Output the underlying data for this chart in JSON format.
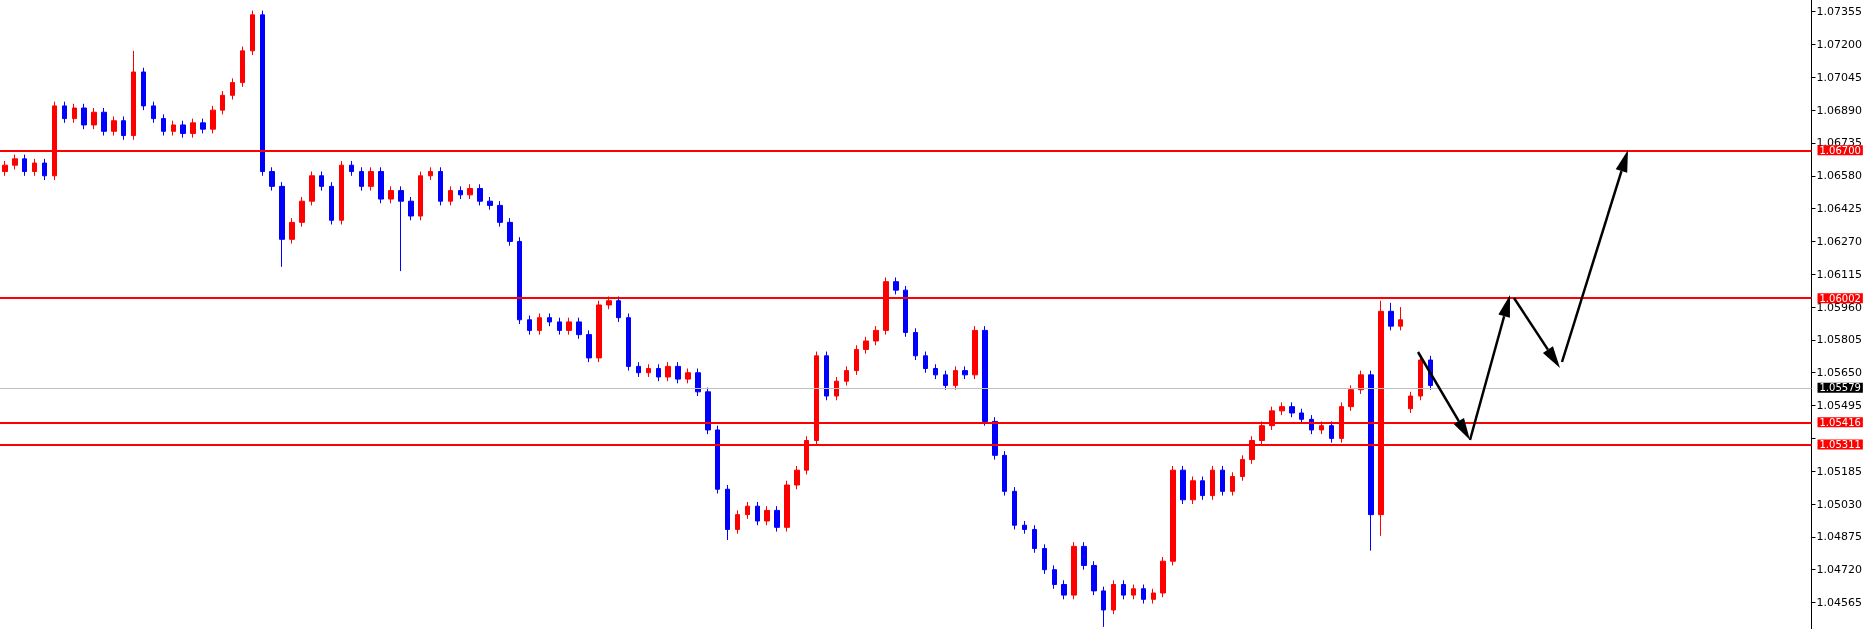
{
  "chart_data": {
    "type": "candlestick",
    "categories": [
      null,
      null,
      null,
      null,
      null,
      null,
      null,
      null,
      null,
      null,
      null,
      null,
      null,
      null,
      null,
      null,
      null,
      null,
      null,
      null,
      null,
      null,
      null,
      null,
      null,
      null,
      null,
      null,
      null,
      null,
      null,
      null,
      null,
      null,
      null,
      null,
      null,
      null,
      null,
      null,
      null,
      null,
      null,
      null,
      null,
      null,
      null,
      null,
      null,
      null,
      null,
      null,
      null,
      null,
      null,
      null,
      null,
      null,
      null,
      null,
      null,
      null,
      null,
      null,
      null,
      null,
      null,
      null,
      null,
      null,
      null,
      null,
      null,
      null,
      null,
      null,
      null,
      null,
      null,
      null,
      null,
      null,
      null,
      null,
      null,
      null,
      null,
      null,
      null,
      null,
      null,
      null,
      null,
      null,
      null,
      null,
      null,
      null,
      null,
      null,
      null,
      null,
      null,
      null,
      null,
      null,
      null,
      null,
      null,
      null,
      null,
      null,
      null,
      null,
      null,
      null,
      null,
      null,
      null,
      null,
      null,
      null,
      null,
      null,
      null,
      null,
      null,
      null,
      null,
      null,
      null,
      null,
      null,
      null,
      null,
      null,
      null,
      null,
      null,
      null,
      null,
      null,
      null,
      null,
      null,
      null,
      null,
      null,
      null,
      null,
      null,
      null,
      null,
      null,
      null,
      null,
      null,
      null,
      null,
      null,
      null,
      null,
      null,
      null,
      null,
      null,
      null,
      null,
      null,
      null,
      null,
      null,
      null,
      null,
      null,
      null,
      null,
      null,
      null,
      null,
      null,
      null,
      null
    ],
    "colors": [
      "#ff0000",
      "#ff0000",
      "#0000ff",
      "#ff0000",
      "#0000ff",
      "#ff0000",
      "#0000ff",
      "#ff0000",
      "#0000ff",
      "#ff0000",
      "#0000ff",
      "#ff0000",
      "#0000ff",
      "#ff0000",
      "#0000ff",
      "#0000ff",
      "#0000ff",
      "#ff0000",
      "#0000ff",
      "#ff0000",
      "#0000ff",
      "#ff0000",
      "#ff0000",
      "#ff0000",
      "#ff0000",
      "#ff0000",
      "#0000ff",
      "#0000ff",
      "#0000ff",
      "#ff0000",
      "#ff0000",
      "#ff0000",
      "#0000ff",
      "#0000ff",
      "#ff0000",
      "#0000ff",
      "#0000ff",
      "#ff0000",
      "#0000ff",
      "#ff0000",
      "#0000ff",
      "#0000ff",
      "#ff0000",
      "#ff0000",
      "#0000ff",
      "#ff0000",
      "#0000ff",
      "#ff0000",
      "#0000ff",
      "#0000ff",
      "#0000ff",
      "#0000ff",
      "#0000ff",
      "#0000ff",
      "#ff0000",
      "#0000ff",
      "#0000ff",
      "#ff0000",
      "#0000ff",
      "#0000ff",
      "#ff0000",
      "#ff0000",
      "#0000ff",
      "#0000ff",
      "#0000ff",
      "#ff0000",
      "#0000ff",
      "#ff0000",
      "#0000ff",
      "#ff0000",
      "#0000ff",
      "#0000ff",
      "#0000ff",
      "#0000ff",
      "#ff0000",
      "#ff0000",
      "#0000ff",
      "#ff0000",
      "#0000ff",
      "#ff0000",
      "#ff0000",
      "#ff0000",
      "#ff0000",
      "#0000ff",
      "#ff0000",
      "#ff0000",
      "#ff0000",
      "#ff0000",
      "#ff0000",
      "#ff0000",
      "#0000ff",
      "#0000ff",
      "#0000ff",
      "#0000ff",
      "#0000ff",
      "#0000ff",
      "#ff0000",
      "#0000ff",
      "#ff0000",
      "#0000ff",
      "#0000ff",
      "#0000ff",
      "#0000ff",
      "#0000ff",
      "#0000ff",
      "#0000ff",
      "#0000ff",
      "#0000ff",
      "#ff0000",
      "#0000ff",
      "#0000ff",
      "#0000ff",
      "#ff0000",
      "#0000ff",
      "#ff0000",
      "#0000ff",
      "#ff0000",
      "#ff0000",
      "#ff0000",
      "#0000ff",
      "#ff0000",
      "#0000ff",
      "#ff0000",
      "#0000ff",
      "#ff0000",
      "#ff0000",
      "#ff0000",
      "#ff0000",
      "#ff0000",
      "#ff0000",
      "#0000ff",
      "#0000ff",
      "#0000ff",
      "#ff0000",
      "#0000ff",
      "#ff0000",
      "#ff0000",
      "#ff0000",
      "#0000ff",
      "#ff0000",
      "#0000ff",
      "#ff0000",
      "#ff0000",
      "#ff0000",
      "#0000ff",
      null,
      null,
      null,
      null,
      null,
      null,
      null,
      null,
      null,
      null,
      null,
      null,
      null,
      null,
      null,
      null,
      null,
      null,
      null,
      null,
      null,
      null,
      null,
      null,
      null,
      null,
      null,
      null,
      null,
      null,
      null,
      null,
      null,
      null,
      null,
      null,
      null,
      null
    ],
    "ohlc": [
      [
        1.066,
        1.0665,
        1.0658,
        1.0663
      ],
      [
        1.0663,
        1.0668,
        1.0661,
        1.0666
      ],
      [
        1.0666,
        1.0668,
        1.0658,
        1.066
      ],
      [
        1.066,
        1.0666,
        1.0658,
        1.0664
      ],
      [
        1.0664,
        1.0666,
        1.0656,
        1.0658
      ],
      [
        1.0658,
        1.0693,
        1.0656,
        1.0691
      ],
      [
        1.0691,
        1.0693,
        1.0683,
        1.0685
      ],
      [
        1.0685,
        1.0692,
        1.0683,
        1.069
      ],
      [
        1.069,
        1.0692,
        1.068,
        1.0682
      ],
      [
        1.0682,
        1.069,
        1.068,
        1.0688
      ],
      [
        1.0688,
        1.069,
        1.0677,
        1.0679
      ],
      [
        1.0679,
        1.0686,
        1.0677,
        1.0684
      ],
      [
        1.0684,
        1.0686,
        1.0675,
        1.0677
      ],
      [
        1.0677,
        1.0717,
        1.0675,
        1.0707
      ],
      [
        1.0707,
        1.0709,
        1.0689,
        1.0691
      ],
      [
        1.0691,
        1.0693,
        1.0683,
        1.0685
      ],
      [
        1.0685,
        1.0687,
        1.0677,
        1.0679
      ],
      [
        1.0679,
        1.0684,
        1.0677,
        1.0682
      ],
      [
        1.0682,
        1.0684,
        1.0676,
        1.0678
      ],
      [
        1.0678,
        1.0685,
        1.0676,
        1.0683
      ],
      [
        1.0683,
        1.0685,
        1.0678,
        1.068
      ],
      [
        1.068,
        1.0691,
        1.0678,
        1.0689
      ],
      [
        1.0689,
        1.0698,
        1.0687,
        1.0696
      ],
      [
        1.0696,
        1.0704,
        1.0694,
        1.0702
      ],
      [
        1.0702,
        1.0719,
        1.07,
        1.0717
      ],
      [
        1.0717,
        1.0736,
        1.0715,
        1.0734
      ],
      [
        1.0734,
        1.0736,
        1.0658,
        1.066
      ],
      [
        1.066,
        1.0662,
        1.0651,
        1.0653
      ],
      [
        1.0653,
        1.0655,
        1.0615,
        1.0628
      ],
      [
        1.0628,
        1.0638,
        1.0626,
        1.0636
      ],
      [
        1.0636,
        1.0648,
        1.0634,
        1.0646
      ],
      [
        1.0646,
        1.066,
        1.0644,
        1.0658
      ],
      [
        1.0658,
        1.066,
        1.0651,
        1.0653
      ],
      [
        1.0653,
        1.0655,
        1.0635,
        1.0637
      ],
      [
        1.0637,
        1.0665,
        1.0635,
        1.0663
      ],
      [
        1.0663,
        1.0665,
        1.0658,
        1.066
      ],
      [
        1.066,
        1.0662,
        1.0651,
        1.0653
      ],
      [
        1.0653,
        1.0662,
        1.0651,
        1.066
      ],
      [
        1.066,
        1.0662,
        1.0645,
        1.0647
      ],
      [
        1.0647,
        1.0653,
        1.0645,
        1.0651
      ],
      [
        1.0651,
        1.0653,
        1.0613,
        1.0646
      ],
      [
        1.0646,
        1.0648,
        1.0637,
        1.0639
      ],
      [
        1.0639,
        1.066,
        1.0637,
        1.0658
      ],
      [
        1.0658,
        1.0662,
        1.0656,
        1.066
      ],
      [
        1.066,
        1.0662,
        1.0644,
        1.0646
      ],
      [
        1.0646,
        1.0653,
        1.0644,
        1.0651
      ],
      [
        1.0651,
        1.0653,
        1.0647,
        1.0649
      ],
      [
        1.0649,
        1.0654,
        1.0647,
        1.0652
      ],
      [
        1.0652,
        1.0654,
        1.0644,
        1.0646
      ],
      [
        1.0646,
        1.0648,
        1.0642,
        1.0644
      ],
      [
        1.0644,
        1.0646,
        1.0634,
        1.0636
      ],
      [
        1.0636,
        1.0638,
        1.0625,
        1.0627
      ],
      [
        1.0627,
        1.0629,
        1.0588,
        1.059
      ],
      [
        1.059,
        1.0592,
        1.0583,
        1.0585
      ],
      [
        1.0585,
        1.0593,
        1.0583,
        1.0591
      ],
      [
        1.0591,
        1.0593,
        1.0587,
        1.0589
      ],
      [
        1.0589,
        1.0591,
        1.0583,
        1.0585
      ],
      [
        1.0585,
        1.0591,
        1.0583,
        1.0589
      ],
      [
        1.0589,
        1.0591,
        1.0581,
        1.0583
      ],
      [
        1.0583,
        1.0585,
        1.057,
        1.0572
      ],
      [
        1.0572,
        1.0599,
        1.057,
        1.0597
      ],
      [
        1.0597,
        1.0601,
        1.0595,
        1.0599
      ],
      [
        1.0599,
        1.0601,
        1.0589,
        1.0591
      ],
      [
        1.0591,
        1.0593,
        1.0566,
        1.0568
      ],
      [
        1.0568,
        1.057,
        1.0563,
        1.0565
      ],
      [
        1.0565,
        1.0569,
        1.0563,
        1.0567
      ],
      [
        1.0567,
        1.0569,
        1.0561,
        1.0563
      ],
      [
        1.0563,
        1.057,
        1.0561,
        1.0568
      ],
      [
        1.0568,
        1.057,
        1.056,
        1.0562
      ],
      [
        1.0562,
        1.0567,
        1.056,
        1.0565
      ],
      [
        1.0565,
        1.0567,
        1.0554,
        1.0556
      ],
      [
        1.0556,
        1.0558,
        1.0536,
        1.0538
      ],
      [
        1.0538,
        1.054,
        1.0508,
        1.051
      ],
      [
        1.051,
        1.0512,
        1.0486,
        1.0491
      ],
      [
        1.0491,
        1.05,
        1.0489,
        1.0498
      ],
      [
        1.0498,
        1.0504,
        1.0496,
        1.0502
      ],
      [
        1.0502,
        1.0504,
        1.0493,
        1.0495
      ],
      [
        1.0495,
        1.0502,
        1.0493,
        1.05
      ],
      [
        1.05,
        1.0502,
        1.049,
        1.0492
      ],
      [
        1.0492,
        1.0514,
        1.049,
        1.0512
      ],
      [
        1.0512,
        1.0521,
        1.051,
        1.0519
      ],
      [
        1.0519,
        1.0535,
        1.0517,
        1.0533
      ],
      [
        1.0533,
        1.0575,
        1.0531,
        1.0573
      ],
      [
        1.0573,
        1.0575,
        1.0552,
        1.0554
      ],
      [
        1.0554,
        1.0563,
        1.0552,
        1.0561
      ],
      [
        1.0561,
        1.0568,
        1.0559,
        1.0566
      ],
      [
        1.0566,
        1.0578,
        1.0564,
        1.0576
      ],
      [
        1.0576,
        1.0582,
        1.0574,
        1.058
      ],
      [
        1.058,
        1.0587,
        1.0578,
        1.0585
      ],
      [
        1.0585,
        1.061,
        1.0583,
        1.0608
      ],
      [
        1.0608,
        1.061,
        1.0602,
        1.0604
      ],
      [
        1.0604,
        1.0606,
        1.0582,
        1.0584
      ],
      [
        1.0584,
        1.0586,
        1.0571,
        1.0573
      ],
      [
        1.0573,
        1.0575,
        1.0565,
        1.0567
      ],
      [
        1.0567,
        1.0569,
        1.0562,
        1.0564
      ],
      [
        1.0564,
        1.0566,
        1.0557,
        1.0559
      ],
      [
        1.0559,
        1.0568,
        1.0557,
        1.0566
      ],
      [
        1.0566,
        1.0568,
        1.0562,
        1.0564
      ],
      [
        1.0564,
        1.0587,
        1.0562,
        1.0585
      ],
      [
        1.0585,
        1.0587,
        1.054,
        1.0542
      ],
      [
        1.0542,
        1.0544,
        1.0524,
        1.0526
      ],
      [
        1.0526,
        1.0528,
        1.0507,
        1.0509
      ],
      [
        1.0509,
        1.0511,
        1.0491,
        1.0493
      ],
      [
        1.0493,
        1.0495,
        1.0489,
        1.0491
      ],
      [
        1.0491,
        1.0493,
        1.048,
        1.0482
      ],
      [
        1.0482,
        1.0484,
        1.047,
        1.0472
      ],
      [
        1.0472,
        1.0474,
        1.0463,
        1.0465
      ],
      [
        1.0465,
        1.0467,
        1.0458,
        1.046
      ],
      [
        1.046,
        1.0485,
        1.0458,
        1.0483
      ],
      [
        1.0483,
        1.0485,
        1.0472,
        1.0474
      ],
      [
        1.0474,
        1.0476,
        1.046,
        1.0462
      ],
      [
        1.0462,
        1.0464,
        1.0445,
        1.0453
      ],
      [
        1.0453,
        1.0467,
        1.0451,
        1.0465
      ],
      [
        1.0465,
        1.0467,
        1.0458,
        1.046
      ],
      [
        1.046,
        1.0465,
        1.0458,
        1.0463
      ],
      [
        1.0463,
        1.0465,
        1.0456,
        1.0458
      ],
      [
        1.0458,
        1.0463,
        1.0456,
        1.0461
      ],
      [
        1.0461,
        1.0478,
        1.0459,
        1.0476
      ],
      [
        1.0476,
        1.0521,
        1.0474,
        1.0519
      ],
      [
        1.0519,
        1.0521,
        1.0503,
        1.0505
      ],
      [
        1.0505,
        1.0516,
        1.0503,
        1.0514
      ],
      [
        1.0514,
        1.0516,
        1.0505,
        1.0507
      ],
      [
        1.0507,
        1.0521,
        1.0505,
        1.0519
      ],
      [
        1.0519,
        1.0521,
        1.0507,
        1.0509
      ],
      [
        1.0509,
        1.0518,
        1.0507,
        1.0516
      ],
      [
        1.0516,
        1.0526,
        1.0514,
        1.0524
      ],
      [
        1.0524,
        1.0535,
        1.0522,
        1.0533
      ],
      [
        1.0533,
        1.0542,
        1.0531,
        1.054
      ],
      [
        1.054,
        1.0549,
        1.0538,
        1.0547
      ],
      [
        1.0547,
        1.0551,
        1.0545,
        1.0549
      ],
      [
        1.0549,
        1.0551,
        1.0544,
        1.0546
      ],
      [
        1.0546,
        1.0548,
        1.0541,
        1.0543
      ],
      [
        1.0543,
        1.0545,
        1.0536,
        1.0538
      ],
      [
        1.0538,
        1.0542,
        1.0536,
        1.054
      ],
      [
        1.054,
        1.0542,
        1.0532,
        1.0534
      ],
      [
        1.0534,
        1.0551,
        1.0532,
        1.0549
      ],
      [
        1.0549,
        1.0559,
        1.0547,
        1.0557
      ],
      [
        1.0557,
        1.0566,
        1.0555,
        1.0564
      ],
      [
        1.0564,
        1.0566,
        1.0481,
        1.0498
      ],
      [
        1.0498,
        1.0599,
        1.0488,
        1.0594
      ],
      [
        1.0594,
        1.0598,
        1.0585,
        1.0587
      ],
      [
        1.0587,
        1.0596,
        1.0585,
        1.059
      ],
      [
        1.0548,
        1.0556,
        1.0546,
        1.0554
      ],
      [
        1.0554,
        1.0573,
        1.0552,
        1.0571
      ],
      [
        1.0571,
        1.0573,
        1.0557,
        1.0559
      ],
      null,
      null,
      null,
      null,
      null,
      null,
      null,
      null,
      null,
      null,
      null,
      null,
      null,
      null,
      null,
      null,
      null,
      null,
      null,
      null,
      null,
      null,
      null,
      null,
      null,
      null,
      null,
      null,
      null,
      null,
      null,
      null,
      null,
      null,
      null,
      null,
      null,
      null
    ],
    "ylim": [
      1.0444,
      1.0741
    ],
    "yticks": [
      1.04565,
      {
        "value": 1.0472,
        "label": "1.04720"
      },
      1.04875,
      {
        "value": 1.0503,
        "label": "1.05030"
      },
      1.05185,
      {
        "value": 1.0534,
        "label": null
      },
      1.05495,
      {
        "value": 1.0565,
        "label": "1.05650"
      },
      1.05805,
      {
        "value": 1.0596,
        "label": "1.05960"
      },
      1.06115,
      {
        "value": 1.0627,
        "label": "1.06270"
      },
      1.06425,
      {
        "value": 1.0658,
        "label": "1.06580"
      },
      1.06735,
      {
        "value": 1.0689,
        "label": "1.06890"
      },
      1.07045,
      {
        "value": 1.072,
        "label": "1.07200"
      },
      1.07355
    ],
    "ref_lines": [
      {
        "axis": "y",
        "value": 1.067,
        "label": "1.06700",
        "color": "#ff0000"
      },
      {
        "axis": "y",
        "value": 1.06002,
        "label": "1.06002",
        "color": "#ff0000"
      },
      {
        "axis": "y",
        "value": 1.05579,
        "label": "1.05579",
        "color": "#c0c0c0"
      },
      {
        "axis": "y",
        "value": 1.05416,
        "label": "1.05416",
        "color": "#ff0000"
      },
      {
        "axis": "y",
        "value": 1.05311,
        "label": "1.05311",
        "color": "#ff0000"
      }
    ],
    "tick_labels": "y",
    "grid": false
  }
}
